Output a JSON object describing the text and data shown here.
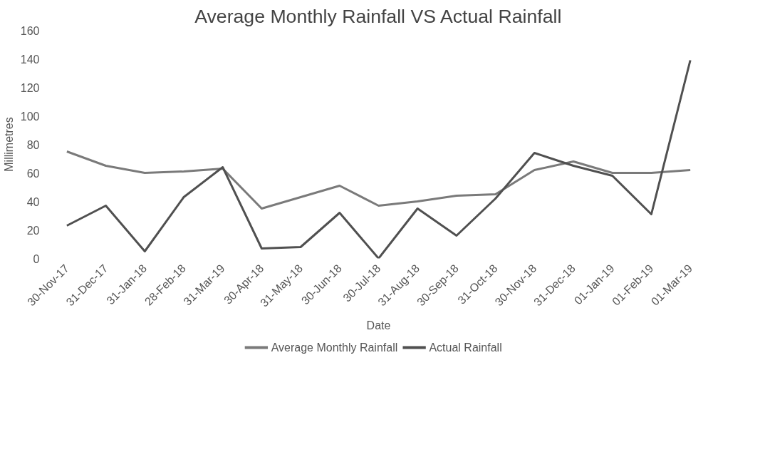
{
  "chart_data": {
    "type": "line",
    "title": "Average Monthly Rainfall VS Actual Rainfall",
    "xlabel": "Date",
    "ylabel": "Millimetres",
    "categories": [
      "30-Nov-17",
      "31-Dec-17",
      "31-Jan-18",
      "28-Feb-18",
      "31-Mar-19",
      "30-Apr-18",
      "31-May-18",
      "30-Jun-18",
      "30-Jul-18",
      "31-Aug-18",
      "30-Sep-18",
      "31-Oct-18",
      "30-Nov-18",
      "31-Dec-18",
      "01-Jan-19",
      "01-Feb-19",
      "01-Mar-19"
    ],
    "series": [
      {
        "name": "Average Monthly Rainfall",
        "color": "#7a7a7a",
        "values": [
          75,
          65,
          60,
          61,
          63,
          35,
          43,
          51,
          37,
          40,
          44,
          45,
          62,
          68,
          60,
          60,
          62
        ]
      },
      {
        "name": "Actual Rainfall",
        "color": "#505050",
        "values": [
          23,
          37,
          5,
          43,
          64,
          7,
          8,
          32,
          0,
          35,
          16,
          42,
          74,
          65,
          58,
          31,
          139
        ]
      }
    ],
    "ylim": [
      0,
      160
    ],
    "yticks": [
      0,
      20,
      40,
      60,
      80,
      100,
      120,
      140,
      160
    ],
    "grid": false,
    "legend": "bottom",
    "line_style": "solid"
  }
}
